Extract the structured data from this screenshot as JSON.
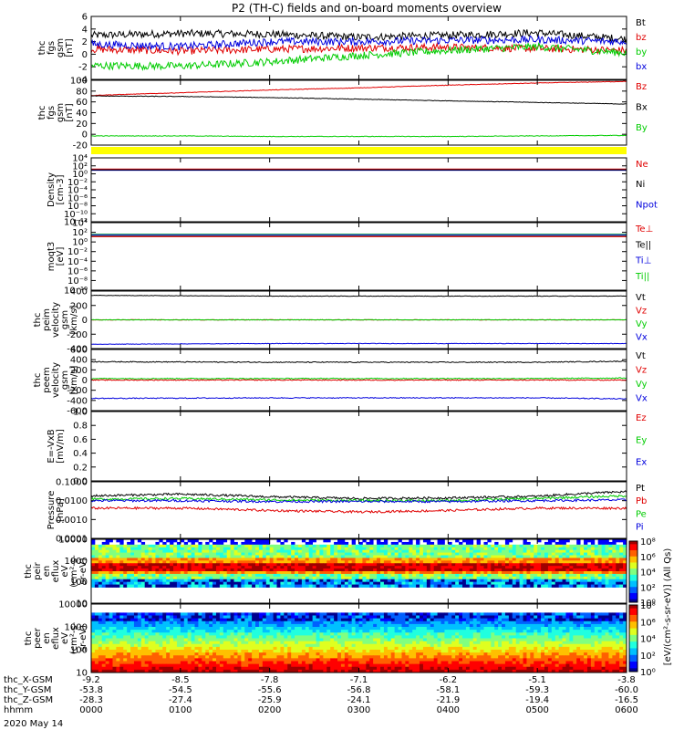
{
  "title": "P2 (TH-C) fields and on-board moments overview",
  "colors": {
    "black": "#000000",
    "red": "#e00000",
    "green": "#00cc00",
    "blue": "#0000dd",
    "yellow": "#ffff00"
  },
  "panels": [
    {
      "ylabel": [
        "thc",
        "fgs",
        "gsm",
        "[nT]"
      ],
      "yticks": [
        "6",
        "4",
        "2",
        "0",
        "-2",
        "-4"
      ],
      "legend": [
        {
          "t": "Bt",
          "c": "black"
        },
        {
          "t": "bz",
          "c": "red"
        },
        {
          "t": "by",
          "c": "green"
        },
        {
          "t": "bx",
          "c": "blue"
        }
      ]
    },
    {
      "ylabel": [
        "thc",
        "fgs",
        "gsm",
        "[nT]"
      ],
      "yticks": [
        "100",
        "80",
        "60",
        "40",
        "20",
        "0",
        "-20"
      ],
      "legend": [
        {
          "t": "Bz",
          "c": "red"
        },
        {
          "t": "Bx",
          "c": "black"
        },
        {
          "t": "By",
          "c": "green"
        }
      ]
    },
    {
      "ylabel": [
        "Density",
        "[cm-3]"
      ],
      "yticks": [
        "10⁴",
        "10²",
        "10⁰",
        "10⁻²",
        "10⁻⁴",
        "10⁻⁶",
        "10⁻⁸",
        "10⁻¹⁰",
        "10⁻¹²"
      ],
      "legend": [
        {
          "t": "Ne",
          "c": "red"
        },
        {
          "t": "Ni",
          "c": "black"
        },
        {
          "t": "Npot",
          "c": "blue"
        }
      ]
    },
    {
      "ylabel": [
        "moqt3",
        "[eV]"
      ],
      "yticks": [
        "10⁴",
        "10²",
        "10⁰",
        "10⁻²",
        "10⁻⁴",
        "10⁻⁶",
        "10⁻⁸",
        "10⁻¹⁰"
      ],
      "legend": [
        {
          "t": "Te⊥",
          "c": "red"
        },
        {
          "t": "Te||",
          "c": "black"
        },
        {
          "t": "Ti⊥",
          "c": "blue"
        },
        {
          "t": "Ti||",
          "c": "green"
        }
      ]
    },
    {
      "ylabel": [
        "thc",
        "peim",
        "velocity",
        "gsm",
        "[km/s]"
      ],
      "yticks": [
        "400",
        "200",
        "0",
        "-200",
        "-400"
      ],
      "legend": [
        {
          "t": "Vt",
          "c": "black"
        },
        {
          "t": "Vz",
          "c": "red"
        },
        {
          "t": "Vy",
          "c": "green"
        },
        {
          "t": "Vx",
          "c": "blue"
        }
      ]
    },
    {
      "ylabel": [
        "thc",
        "peem",
        "velocity",
        "gsm",
        "[km/s]"
      ],
      "yticks": [
        "600",
        "400",
        "200",
        "0",
        "-200",
        "-400",
        "-600"
      ],
      "legend": [
        {
          "t": "Vt",
          "c": "black"
        },
        {
          "t": "Vz",
          "c": "red"
        },
        {
          "t": "Vy",
          "c": "green"
        },
        {
          "t": "Vx",
          "c": "blue"
        }
      ]
    },
    {
      "ylabel": [
        "E=-VxB",
        "[mV/m]"
      ],
      "yticks": [
        "1.0",
        "0.8",
        "0.6",
        "0.4",
        "0.2",
        "0.0"
      ],
      "legend": [
        {
          "t": "Ez",
          "c": "red"
        },
        {
          "t": "Ey",
          "c": "green"
        },
        {
          "t": "Ex",
          "c": "blue"
        }
      ]
    },
    {
      "ylabel": [
        "Pressure",
        "[nPa]"
      ],
      "yticks": [
        "0.1000",
        "0.0100",
        "0.0010",
        "0.0001"
      ],
      "legend": [
        {
          "t": "Pt",
          "c": "black"
        },
        {
          "t": "Pb",
          "c": "red"
        },
        {
          "t": "Pe",
          "c": "green"
        },
        {
          "t": "Pi",
          "c": "blue"
        }
      ]
    },
    {
      "ylabel": [
        "thc",
        "peir",
        "en",
        "eflux",
        "eV",
        "(cm²-s-",
        "sr-eV)"
      ],
      "yticks": [
        "10000",
        "1000",
        "100",
        "10"
      ],
      "legend": []
    },
    {
      "ylabel": [
        "thc",
        "peer",
        "en",
        "eflux",
        "eV",
        "(cm²-s-",
        "sr-eV)"
      ],
      "yticks": [
        "10000",
        "1000",
        "100",
        "10"
      ],
      "legend": []
    }
  ],
  "colorbar": {
    "label": "[eV/(cm²-s-sr-eV)] (All Qs)",
    "ticks1": [
      "10⁸",
      "10⁶",
      "10⁴",
      "10²",
      "10⁰"
    ],
    "ticks2": [
      "10⁸",
      "10⁶",
      "10⁴",
      "10²",
      "10⁰"
    ]
  },
  "xaxis": {
    "rows": [
      {
        "label": "thc_X-GSM",
        "values": [
          "-9.2",
          "-8.5",
          "-7.8",
          "-7.1",
          "-6.2",
          "-5.1",
          "-3.8"
        ]
      },
      {
        "label": "thc_Y-GSM",
        "values": [
          "-53.8",
          "-54.5",
          "-55.6",
          "-56.8",
          "-58.1",
          "-59.3",
          "-60.0"
        ]
      },
      {
        "label": "thc_Z-GSM",
        "values": [
          "-28.3",
          "-27.4",
          "-25.9",
          "-24.1",
          "-21.9",
          "-19.4",
          "-16.5"
        ]
      },
      {
        "label": "hhmm",
        "values": [
          "0000",
          "0100",
          "0200",
          "0300",
          "0400",
          "0500",
          "0600"
        ]
      }
    ],
    "date": "2020 May 14"
  },
  "chart_data": {
    "type": "line",
    "title": "P2 (TH-C) fields and on-board moments overview",
    "x_labels": [
      "0000",
      "0100",
      "0200",
      "0300",
      "0400",
      "0500",
      "0600"
    ],
    "date": "2020 May 14",
    "series": [
      {
        "name": "Bt",
        "panel": 0,
        "values": [
          3.0,
          3.3,
          3.2,
          2.7,
          3.0,
          3.4,
          2.4
        ]
      },
      {
        "name": "bz",
        "panel": 0,
        "values": [
          0.8,
          0.5,
          0.8,
          1.0,
          1.1,
          0.9,
          0.6
        ]
      },
      {
        "name": "by",
        "panel": 0,
        "values": [
          -1.8,
          -1.9,
          -1.2,
          -0.2,
          0.6,
          1.2,
          0.2
        ]
      },
      {
        "name": "bx",
        "panel": 0,
        "values": [
          1.6,
          1.2,
          2.0,
          2.0,
          2.2,
          2.3,
          2.0
        ]
      },
      {
        "name": "Bz",
        "panel": 1,
        "values": [
          72,
          77,
          82,
          86,
          91,
          95,
          98
        ]
      },
      {
        "name": "Bx",
        "panel": 1,
        "values": [
          71,
          70,
          68,
          65,
          62,
          59,
          56
        ]
      },
      {
        "name": "By",
        "panel": 1,
        "values": [
          -3,
          -3,
          -4,
          -4,
          -4,
          -3,
          -2
        ]
      },
      {
        "name": "Vt",
        "panel": 4,
        "values": [
          340,
          335,
          330,
          330,
          330,
          330,
          330
        ]
      },
      {
        "name": "Vz",
        "panel": 4,
        "values": [
          0,
          0,
          0,
          0,
          0,
          0,
          0
        ]
      },
      {
        "name": "Vy",
        "panel": 4,
        "values": [
          0,
          0,
          0,
          0,
          0,
          0,
          0
        ]
      },
      {
        "name": "Vx",
        "panel": 4,
        "values": [
          -340,
          -335,
          -330,
          -330,
          -330,
          -330,
          -330
        ]
      },
      {
        "name": "Vt",
        "panel": 5,
        "values": [
          360,
          355,
          350,
          350,
          350,
          350,
          370
        ]
      },
      {
        "name": "Vz",
        "panel": 5,
        "values": [
          0,
          0,
          0,
          0,
          0,
          0,
          0
        ]
      },
      {
        "name": "Vy",
        "panel": 5,
        "values": [
          30,
          30,
          30,
          30,
          30,
          30,
          40
        ]
      },
      {
        "name": "Vx",
        "panel": 5,
        "values": [
          -360,
          -355,
          -350,
          -350,
          -350,
          -350,
          -370
        ]
      },
      {
        "name": "Pt",
        "panel": 7,
        "values": [
          0.018,
          0.022,
          0.016,
          0.013,
          0.014,
          0.017,
          0.03
        ]
      },
      {
        "name": "Pb",
        "panel": 7,
        "values": [
          0.004,
          0.004,
          0.003,
          0.0025,
          0.003,
          0.004,
          0.004
        ]
      },
      {
        "name": "Pe",
        "panel": 7,
        "values": [
          0.012,
          0.013,
          0.011,
          0.01,
          0.01,
          0.013,
          0.018
        ]
      },
      {
        "name": "Pi",
        "panel": 7,
        "values": [
          0.01,
          0.01,
          0.009,
          0.009,
          0.009,
          0.01,
          0.011
        ]
      }
    ]
  }
}
